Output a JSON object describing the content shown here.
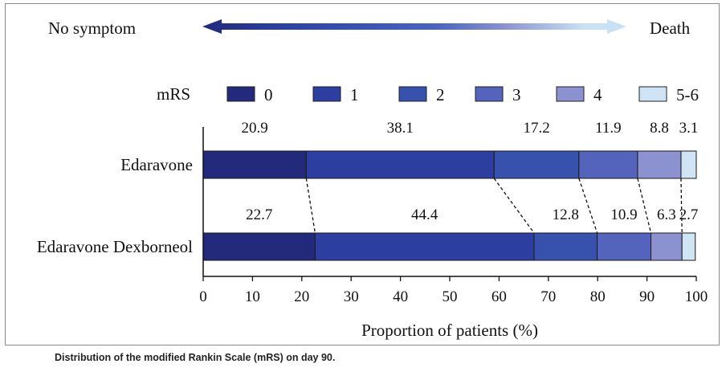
{
  "caption": "Distribution of the modified Rankin Scale (mRS) on day 90.",
  "scale_arrow": {
    "left_label": "No symptom",
    "right_label": "Death",
    "colors": [
      "#1f2a78",
      "#2a3c9a",
      "#3451b0",
      "#4a66c0",
      "#8d95d2",
      "#c9e1f4"
    ]
  },
  "chart_data": {
    "type": "bar",
    "orientation": "horizontal",
    "stacked": true,
    "categories": [
      "Edaravone",
      "Edaravone Dexborneol"
    ],
    "legend_title": "mRS",
    "legend_position": "top",
    "series": [
      {
        "name": "0",
        "color": "#232a7c",
        "values": [
          20.9,
          22.7
        ]
      },
      {
        "name": "1",
        "color": "#2c3fa0",
        "values": [
          38.1,
          44.4
        ]
      },
      {
        "name": "2",
        "color": "#3652ad",
        "values": [
          17.2,
          12.8
        ]
      },
      {
        "name": "3",
        "color": "#5463bb",
        "values": [
          11.9,
          10.9
        ]
      },
      {
        "name": "4",
        "color": "#8c91cf",
        "values": [
          8.8,
          6.3
        ]
      },
      {
        "name": "5-6",
        "color": "#cfe4f5",
        "values": [
          3.1,
          2.7
        ]
      }
    ],
    "data_labels": [
      [
        "20.9",
        "38.1",
        "17.2",
        "11.9",
        "8.8",
        "3.1"
      ],
      [
        "22.7",
        "44.4",
        "12.8",
        "10.9",
        "6.3",
        "2.7"
      ]
    ],
    "xlabel": "Proportion of patients (%)",
    "ylabel": "",
    "xlim": [
      0,
      100
    ],
    "x_ticks": [
      "0",
      "10",
      "20",
      "30",
      "40",
      "50",
      "60",
      "70",
      "80",
      "90",
      "100"
    ],
    "connector_lines": "dashed",
    "grid": false
  }
}
